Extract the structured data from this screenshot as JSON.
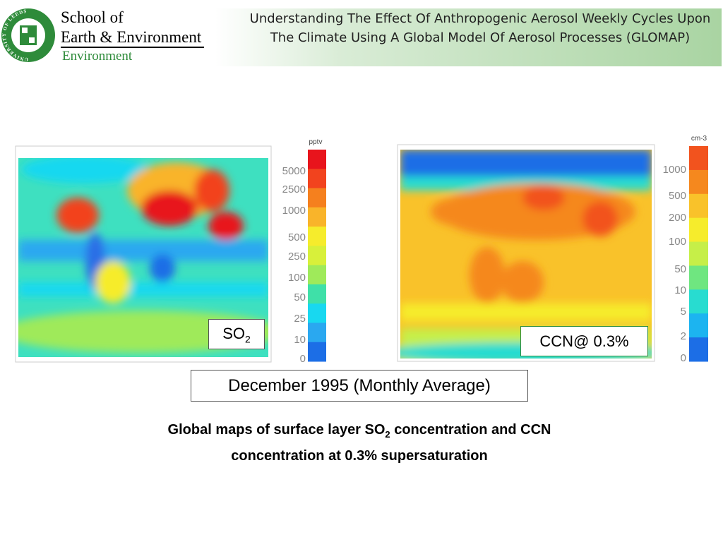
{
  "header": {
    "logo_text": "UNIVERSITY OF LEEDS",
    "school_line1": "School of",
    "school_line2": "Earth & Environment",
    "school_line3": "Environment",
    "title": "Understanding The Effect Of Anthropogenic Aerosol Weekly Cycles Upon The Climate Using A Global Model Of Aerosol Processes (GLOMAP)"
  },
  "maps": [
    {
      "label": "SO",
      "label_sub": "2",
      "colorbar": {
        "unit": "pptv",
        "labels": [
          5000,
          2500,
          1000,
          500,
          250,
          100,
          50,
          25,
          10,
          0
        ],
        "colors": [
          "#e8141c",
          "#f2431e",
          "#f5801e",
          "#f9b42a",
          "#f6ec2c",
          "#d8f03a",
          "#9fea5a",
          "#3fe0a8",
          "#18d8f0",
          "#2aa8f0",
          "#1c6ee6"
        ]
      }
    },
    {
      "label": "CCN@ 0.3%",
      "colorbar": {
        "unit": "cm-3",
        "labels": [
          1000,
          500,
          200,
          100,
          50,
          10,
          5,
          2,
          0
        ],
        "colors": [
          "#f2531e",
          "#f5881e",
          "#f9c22a",
          "#f6ec2c",
          "#c6ef48",
          "#6fe680",
          "#28dcd0",
          "#1cb4f0",
          "#1c6ee6"
        ]
      }
    }
  ],
  "period": "December 1995 (Monthly Average)",
  "caption": {
    "part1": "Global maps of surface layer SO",
    "sub": "2",
    "part2": " concentration and CCN",
    "line2": "concentration at 0.3% supersaturation"
  }
}
